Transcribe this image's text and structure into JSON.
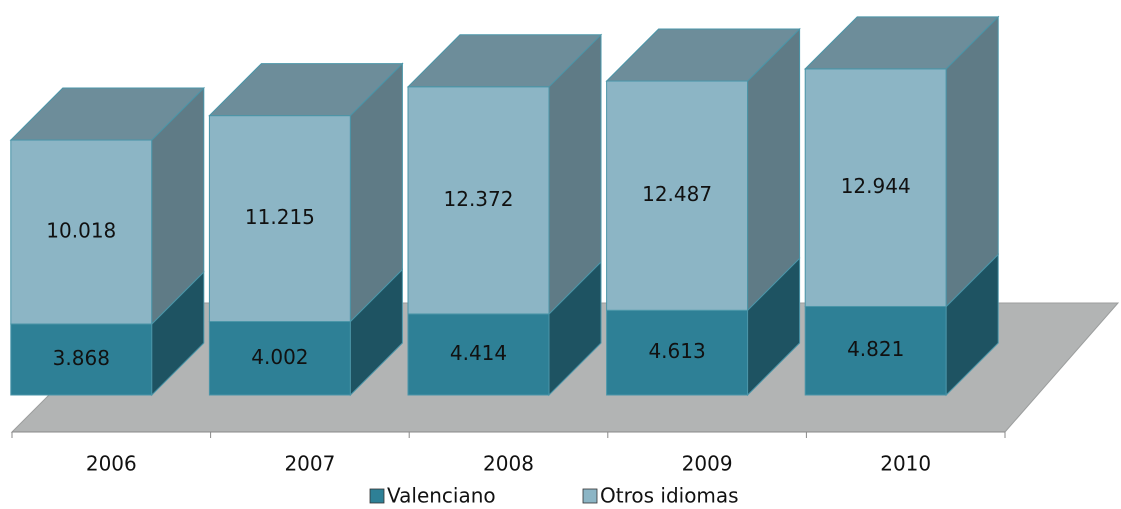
{
  "chart_data": {
    "type": "bar3d_stacked",
    "categories": [
      "2006",
      "2007",
      "2008",
      "2009",
      "2010"
    ],
    "series": [
      {
        "name": "Valenciano",
        "color": "#2e8096",
        "values": [
          3868,
          4002,
          4414,
          4613,
          4821
        ],
        "value_labels": [
          "3.868",
          "4.002",
          "4.414",
          "4.613",
          "4.821"
        ]
      },
      {
        "name": "Otros idiomas",
        "color": "#8cb5c5",
        "values": [
          10018,
          11215,
          12372,
          12487,
          12944
        ],
        "value_labels": [
          "10.018",
          "11.215",
          "12.372",
          "12.487",
          "12.944"
        ]
      }
    ],
    "legend": "bottom"
  }
}
